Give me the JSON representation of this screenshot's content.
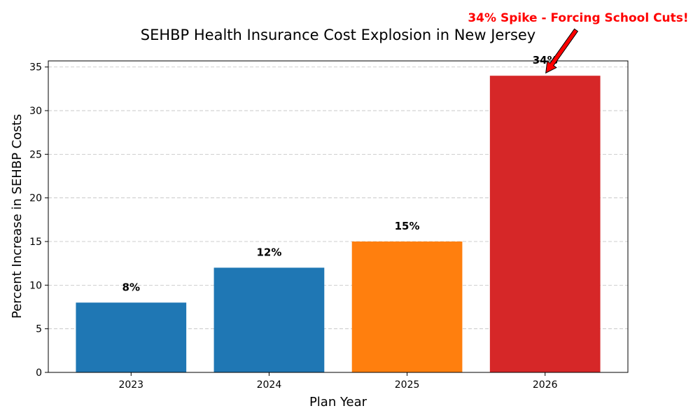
{
  "chart_data": {
    "type": "bar",
    "title": "SEHBP Health Insurance Cost Explosion in New Jersey",
    "xlabel": "Plan Year",
    "ylabel": "Percent Increase in SEHBP Costs",
    "categories": [
      "2023",
      "2024",
      "2025",
      "2026"
    ],
    "values": [
      8,
      12,
      15,
      34
    ],
    "data_labels": [
      "8%",
      "12%",
      "15%",
      "34%"
    ],
    "bar_colors": [
      "#1f77b4",
      "#1f77b4",
      "#ff7f0e",
      "#d62728"
    ],
    "ylim": [
      0,
      35.7
    ],
    "yticks": [
      0,
      5,
      10,
      15,
      20,
      25,
      30,
      35
    ],
    "grid": "y-dashed",
    "annotation": {
      "text": "34% Spike - Forcing School Cuts!",
      "color": "#ff0000",
      "target_category": "2026",
      "target_value": 34
    }
  }
}
